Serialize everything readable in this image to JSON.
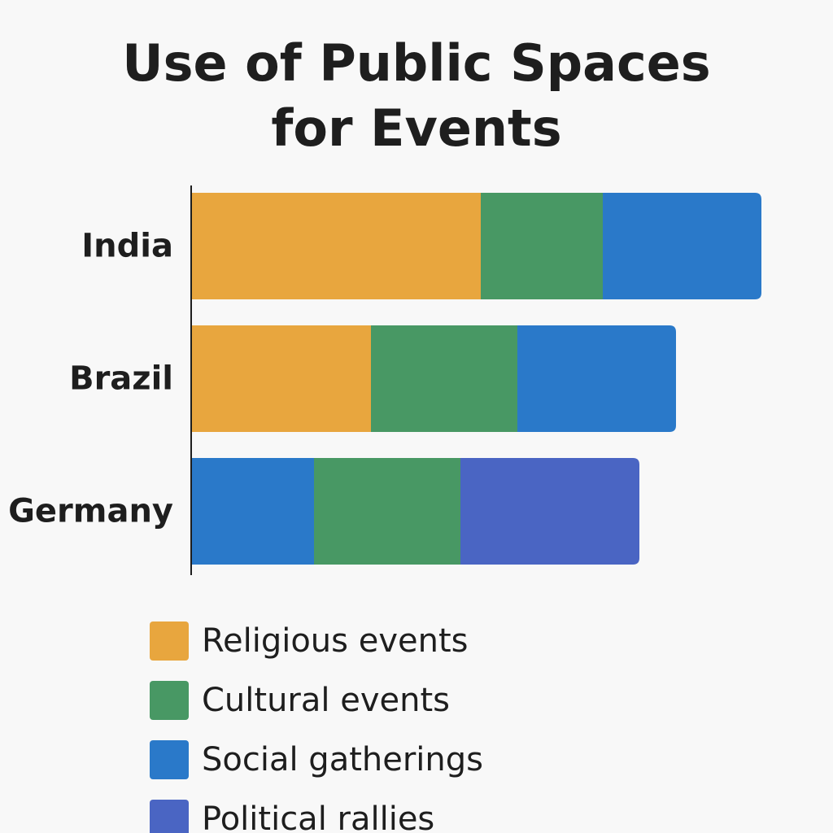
{
  "chart_data": {
    "type": "bar",
    "orientation": "horizontal",
    "stacked": true,
    "title_lines": [
      "Use of Public Spaces",
      "for Events"
    ],
    "categories": [
      "India",
      "Brazil",
      "Germany"
    ],
    "series": [
      {
        "name": "Religious events",
        "color": "#e8a63e",
        "values": [
          35.5,
          22,
          0
        ]
      },
      {
        "name": "Cultural events",
        "color": "#489864",
        "values": [
          15,
          18,
          18
        ]
      },
      {
        "name": "Social gatherings",
        "color": "#2a79c9",
        "values": [
          19.5,
          19.5,
          15
        ]
      },
      {
        "name": "Political rallies",
        "color": "#4a65c3",
        "values": [
          0,
          0,
          22
        ]
      }
    ],
    "stack_orders": [
      [
        "Religious events",
        "Cultural events",
        "Social gatherings"
      ],
      [
        "Religious events",
        "Cultural events",
        "Social gatherings"
      ],
      [
        "Social gatherings",
        "Cultural events",
        "Political rallies"
      ]
    ],
    "xlim": [
      0,
      70
    ],
    "grid": false,
    "legend_position": "bottom"
  }
}
